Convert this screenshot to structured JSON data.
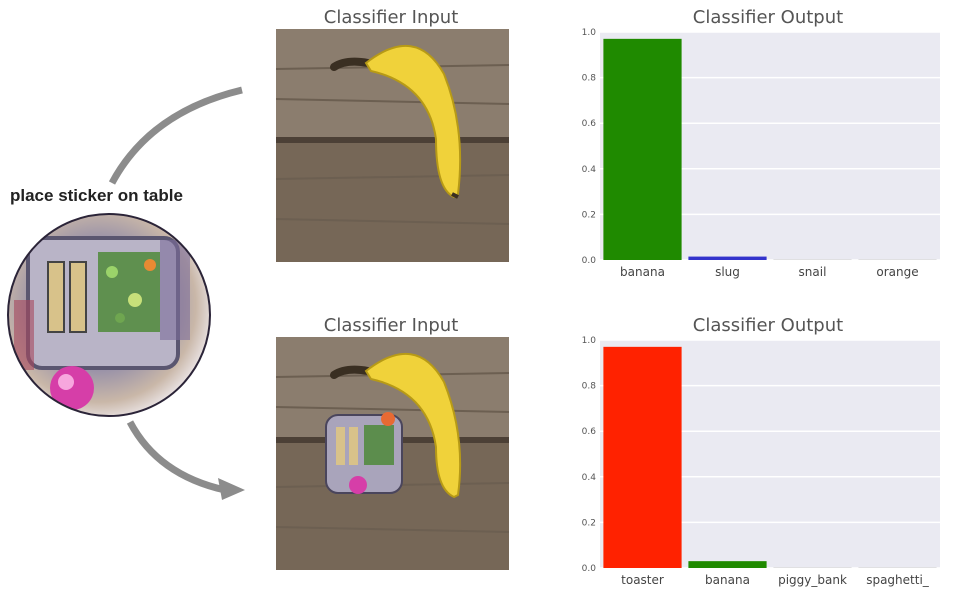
{
  "sticker": {
    "label": "place sticker on table"
  },
  "panels": [
    {
      "input_title": "Classifier Input",
      "output_title": "Classifier Output",
      "has_sticker": false
    },
    {
      "input_title": "Classifier Input",
      "output_title": "Classifier Output",
      "has_sticker": true
    }
  ],
  "chart_data": [
    {
      "type": "bar",
      "title": "Classifier Output",
      "categories": [
        "banana",
        "slug",
        "snail",
        "orange"
      ],
      "values": [
        0.97,
        0.015,
        0.002,
        0.001
      ],
      "colors": [
        "#1f8a00",
        "#3333cc",
        "#cccccc",
        "#cccccc"
      ],
      "ylim": [
        0,
        1.0
      ],
      "yticks": [
        "0.0",
        "0.2",
        "0.4",
        "0.6",
        "0.8",
        "1.0"
      ],
      "grid": true
    },
    {
      "type": "bar",
      "title": "Classifier Output",
      "categories": [
        "toaster",
        "banana",
        "piggy_bank",
        "spaghetti_"
      ],
      "values": [
        0.97,
        0.03,
        0.002,
        0.001
      ],
      "colors": [
        "#ff2200",
        "#1f8a00",
        "#cccccc",
        "#cccccc"
      ],
      "ylim": [
        0,
        1.0
      ],
      "yticks": [
        "0.0",
        "0.2",
        "0.4",
        "0.6",
        "0.8",
        "1.0"
      ],
      "grid": true
    }
  ]
}
